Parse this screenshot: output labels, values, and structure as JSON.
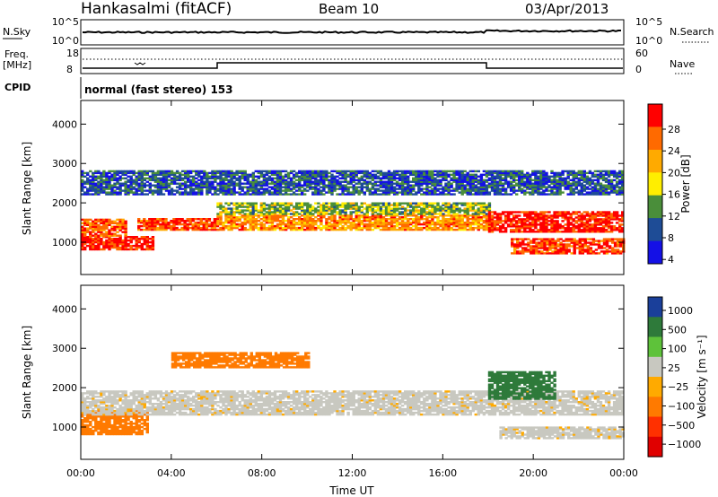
{
  "header": {
    "radar": "Hankasalmi (fitACF)",
    "beam": "Beam 10",
    "date": "03/Apr/2013"
  },
  "noise_panel": {
    "left_label": "N.Sky",
    "right_label": "N.Search",
    "left_ticks": [
      "10^5",
      "10^0"
    ],
    "right_ticks": [
      "10^5",
      "10^0"
    ]
  },
  "freq_panel": {
    "left_label_1": "Freq.",
    "left_label_2": "[MHz]",
    "left_ticks": [
      "18",
      "8"
    ],
    "right_label": "Nave",
    "right_ticks": [
      "60",
      "0"
    ]
  },
  "cpid": {
    "label": "CPID",
    "text": "normal (fast stereo) 153"
  },
  "power_colorbar": {
    "label": "Power [dB]",
    "ticks": [
      "28",
      "24",
      "20",
      "16",
      "12",
      "8",
      "4"
    ],
    "colors": [
      "#ff0000",
      "#ff6a00",
      "#ffaa00",
      "#ffee00",
      "#4a8e3a",
      "#1e4c96",
      "#1410e6"
    ]
  },
  "velocity_colorbar": {
    "label": "Velocity [m s⁻¹]",
    "ticks": [
      "1000",
      "500",
      "100",
      "25",
      "−25",
      "−100",
      "−500",
      "−1000"
    ],
    "colors": [
      "#1a3f9a",
      "#2e7a3a",
      "#5ec23a",
      "#c8c8c0",
      "#ffaa00",
      "#ff7a00",
      "#ff3000",
      "#e00000"
    ]
  },
  "chart_data": [
    {
      "type": "heatmap",
      "name": "power",
      "ylabel": "Slant Range [km]",
      "xlabel": "Time UT",
      "x_ticks": [
        "00:00",
        "04:00",
        "08:00",
        "12:00",
        "16:00",
        "20:00",
        "00:00"
      ],
      "y_ticks": [
        "1000",
        "2000",
        "3000",
        "4000"
      ],
      "xlim_hours": [
        0,
        24
      ],
      "ylim_km": [
        180,
        4600
      ],
      "scatter_bands": [
        {
          "t0": 0.0,
          "t1": 3.2,
          "r0": 800,
          "r1": 1150,
          "level": 28
        },
        {
          "t0": 0.0,
          "t1": 2.0,
          "r0": 1150,
          "r1": 1600,
          "level": 24
        },
        {
          "t0": 2.5,
          "t1": 6.0,
          "r0": 1300,
          "r1": 1600,
          "level": 26
        },
        {
          "t0": 6.0,
          "t1": 18.0,
          "r0": 1300,
          "r1": 1700,
          "level": 22
        },
        {
          "t0": 6.0,
          "t1": 18.0,
          "r0": 1700,
          "r1": 2000,
          "level": 14
        },
        {
          "t0": 18.0,
          "t1": 24.0,
          "r0": 1250,
          "r1": 1750,
          "level": 28
        },
        {
          "t0": 19.0,
          "t1": 24.0,
          "r0": 700,
          "r1": 1100,
          "level": 26
        },
        {
          "t0": 0.0,
          "t1": 24.0,
          "r0": 2200,
          "r1": 2800,
          "level": 8
        }
      ]
    },
    {
      "type": "heatmap",
      "name": "velocity",
      "ylabel": "Slant Range [km]",
      "xlabel": "Time UT",
      "x_ticks": [
        "00:00",
        "04:00",
        "08:00",
        "12:00",
        "16:00",
        "20:00",
        "00:00"
      ],
      "y_ticks": [
        "1000",
        "2000",
        "3000",
        "4000"
      ],
      "xlim_hours": [
        0,
        24
      ],
      "ylim_km": [
        180,
        4600
      ],
      "scatter_bands": [
        {
          "t0": 0.0,
          "t1": 3.0,
          "r0": 800,
          "r1": 1400,
          "level": -150
        },
        {
          "t0": 0.0,
          "t1": 24.0,
          "r0": 1300,
          "r1": 1900,
          "level": 0
        },
        {
          "t0": 4.0,
          "t1": 10.0,
          "r0": 2500,
          "r1": 2900,
          "level": -120
        },
        {
          "t0": 18.0,
          "t1": 21.0,
          "r0": 1700,
          "r1": 2400,
          "level": 400
        },
        {
          "t0": 18.5,
          "t1": 24.0,
          "r0": 700,
          "r1": 1000,
          "level": 0
        }
      ]
    }
  ]
}
